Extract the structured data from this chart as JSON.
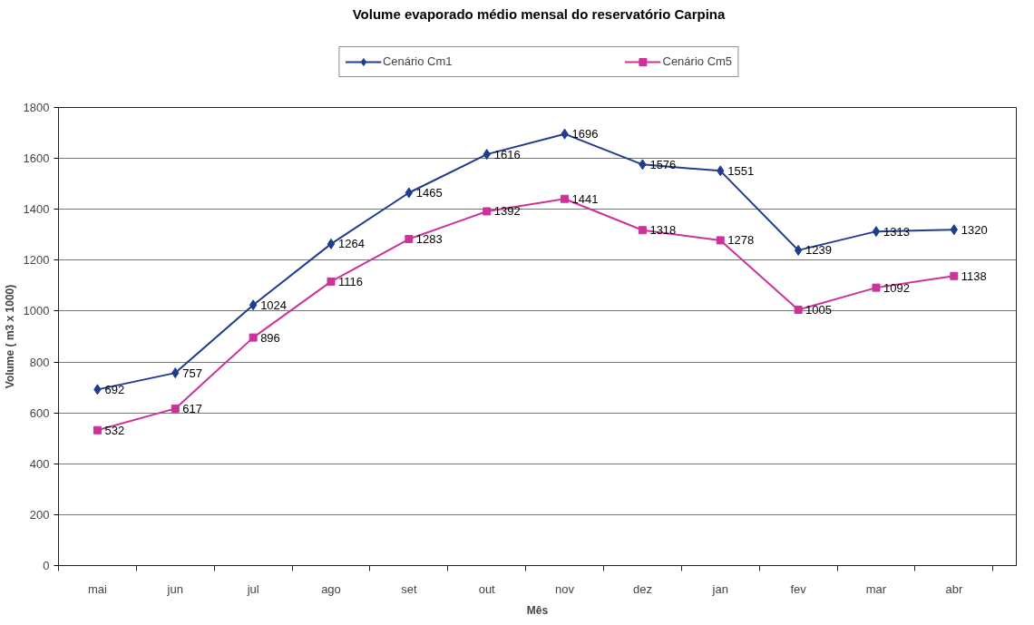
{
  "chart_data": {
    "type": "line",
    "title": "Volume evaporado médio mensal do reservatório Carpina",
    "xlabel": "Mês",
    "ylabel": "Volume ( m3 x 1000)",
    "categories": [
      "mai",
      "jun",
      "jul",
      "ago",
      "set",
      "out",
      "nov",
      "dez",
      "jan",
      "fev",
      "mar",
      "abr"
    ],
    "series": [
      {
        "name": "Cenário Cm1",
        "color": "#1f3d8c",
        "marker": "diamond",
        "values": [
          692,
          757,
          1024,
          1264,
          1465,
          1616,
          1696,
          1576,
          1551,
          1239,
          1313,
          1320
        ]
      },
      {
        "name": "Cenário Cm5",
        "color": "#cc3399",
        "marker": "square",
        "values": [
          532,
          617,
          896,
          1116,
          1283,
          1392,
          1441,
          1318,
          1278,
          1005,
          1092,
          1138
        ]
      }
    ],
    "ylim": [
      0,
      1800
    ],
    "yticks": [
      0,
      200,
      400,
      600,
      800,
      1000,
      1200,
      1400,
      1600,
      1800
    ],
    "grid": "y",
    "legend": "top",
    "data_labels": true,
    "line_style": "solid"
  }
}
